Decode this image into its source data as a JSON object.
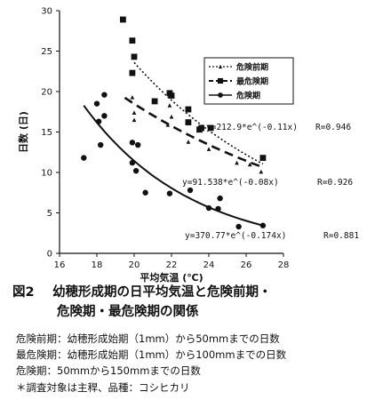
{
  "chart_data": {
    "type": "scatter",
    "xlabel": "平均気温 (℃)",
    "ylabel": "日数 (日)",
    "xlim": [
      16,
      28
    ],
    "ylim": [
      0,
      30
    ],
    "xticks": [
      16,
      18,
      20,
      22,
      24,
      26,
      28
    ],
    "yticks": [
      0,
      5,
      10,
      15,
      20,
      25,
      30
    ],
    "x_tick_labels": [
      "16",
      "18",
      "20",
      "22",
      "24",
      "26",
      "28"
    ],
    "y_tick_labels": [
      "0",
      "5",
      "10",
      "15",
      "20",
      "25",
      "30"
    ],
    "grid": false,
    "legend_position": "top-right",
    "series": [
      {
        "name": "危険前期",
        "marker": "triangle",
        "points": [
          [
            19.9,
            19.3
          ],
          [
            20.0,
            16.5
          ],
          [
            20.0,
            17.4
          ],
          [
            21.8,
            15.9
          ],
          [
            21.9,
            18.3
          ],
          [
            22.0,
            16.9
          ],
          [
            22.9,
            13.8
          ],
          [
            24.0,
            12.9
          ],
          [
            25.5,
            11.2
          ],
          [
            26.2,
            11.0
          ],
          [
            26.8,
            10.1
          ]
        ],
        "fit": {
          "equation": "y=212.9*e^(-0.11x)",
          "r": "R=0.946",
          "a": 212.9,
          "b": -0.11,
          "x_range": [
            20.0,
            26.9
          ],
          "line_style": "dotted"
        }
      },
      {
        "name": "最危険期",
        "marker": "square",
        "points": [
          [
            19.4,
            28.9
          ],
          [
            19.9,
            26.3
          ],
          [
            19.9,
            22.3
          ],
          [
            20.0,
            24.3
          ],
          [
            21.1,
            18.8
          ],
          [
            21.9,
            19.8
          ],
          [
            22.0,
            19.5
          ],
          [
            22.9,
            17.8
          ],
          [
            22.9,
            16.2
          ],
          [
            23.5,
            15.3
          ],
          [
            23.6,
            15.5
          ],
          [
            24.1,
            15.5
          ],
          [
            26.9,
            11.8
          ]
        ],
        "fit": {
          "equation": "y=91.538*e^(-0.08x)",
          "r": "R=0.926",
          "a": 91.538,
          "b": -0.08,
          "x_range": [
            19.5,
            26.9
          ],
          "line_style": "dashed"
        }
      },
      {
        "name": "危険期",
        "marker": "circle",
        "points": [
          [
            17.3,
            11.8
          ],
          [
            18.0,
            18.5
          ],
          [
            18.1,
            16.3
          ],
          [
            18.2,
            13.4
          ],
          [
            18.4,
            19.6
          ],
          [
            18.4,
            17.0
          ],
          [
            19.9,
            13.7
          ],
          [
            19.9,
            11.2
          ],
          [
            20.1,
            10.2
          ],
          [
            20.2,
            13.4
          ],
          [
            20.6,
            7.5
          ],
          [
            21.9,
            7.4
          ],
          [
            23.0,
            7.8
          ],
          [
            24.0,
            5.6
          ],
          [
            24.5,
            5.5
          ],
          [
            24.6,
            6.8
          ],
          [
            25.6,
            3.3
          ]
        ],
        "fit": {
          "equation": "y=370.77*e^(-0.174x)",
          "r": "R=0.881",
          "a": 370.77,
          "b": -0.174,
          "x_range": [
            17.3,
            26.9
          ],
          "line_style": "solid"
        }
      }
    ]
  },
  "caption": {
    "figure_label": "図2",
    "title_line1": "幼穂形成期の日平均気温と危険前期・",
    "title_line2": "危険期・最危険期の関係"
  },
  "notes": [
    "危険前期：幼穂形成始期（1mm）から50mmまでの日数",
    "最危険期：幼穂形成始期（1mm）から100mmまでの日数",
    "危険期：50mmから150mmまでの日数"
  ],
  "footnote": "＊調査対象は主稈、品種：コシヒカリ"
}
